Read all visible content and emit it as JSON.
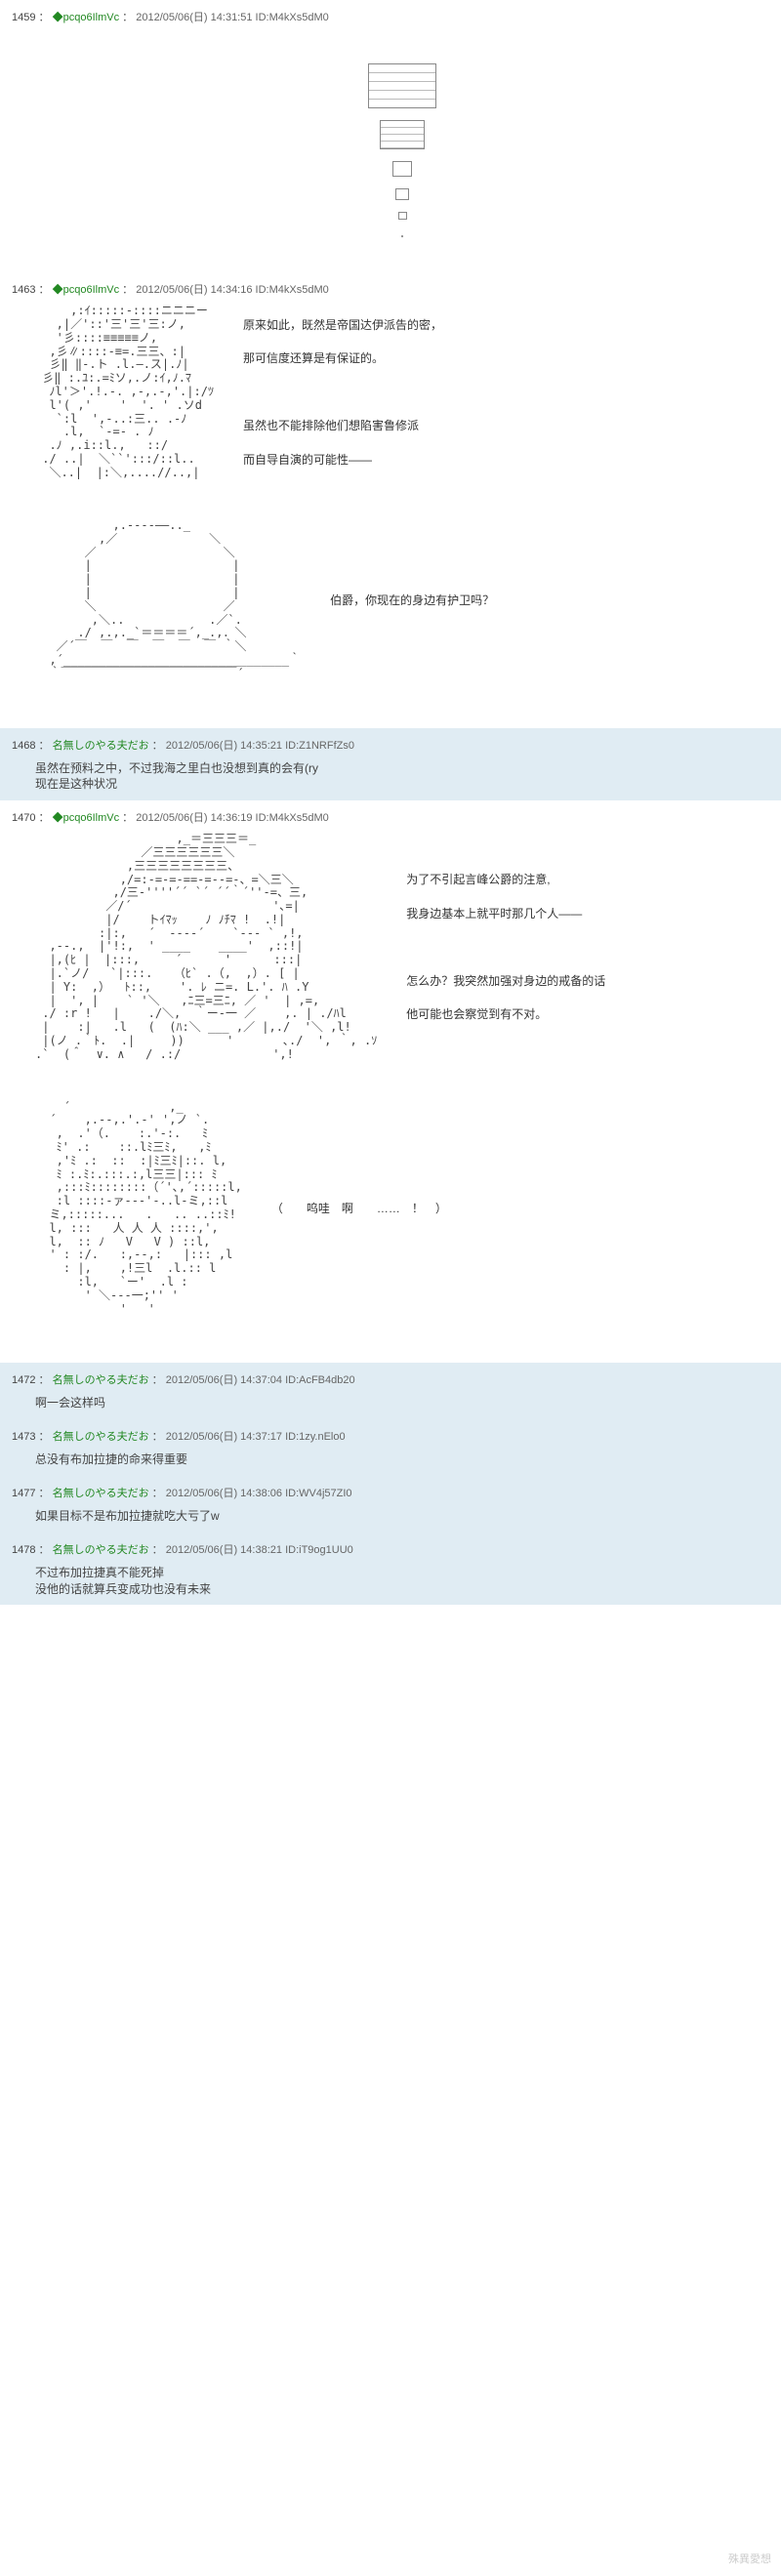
{
  "watermark": "殊異愛想",
  "posts": [
    {
      "num": "1459",
      "name": "◆pcqo6IlmVc",
      "date": "2012/05/06(日) 14:31:51",
      "id": "ID:M4kXs5dM0",
      "highlight": false,
      "type": "shapes"
    },
    {
      "num": "1463",
      "name": "◆pcqo6IlmVc",
      "date": "2012/05/06(日) 14:34:16",
      "id": "ID:M4kXs5dM0",
      "highlight": false,
      "type": "aa",
      "sections": [
        {
          "art": "face1",
          "lines": [
            "原来如此，既然是帝国达伊派告的密，",
            "那可信度还算是有保证的。",
            "",
            "虽然也不能排除他们想陷害鲁修派",
            "而自导自演的可能性——"
          ]
        },
        {
          "art": "orb",
          "lines": [
            "伯爵，你现在的身边有护卫吗？"
          ]
        }
      ]
    },
    {
      "num": "1468",
      "name": "名無しのやる夫だお",
      "date": "2012/05/06(日) 14:35:21",
      "id": "ID:Z1NRFfZs0",
      "highlight": true,
      "type": "text",
      "body": [
        "虽然在预料之中，不过我海之里白也没想到真的会有(ry",
        "现在是这种状况"
      ]
    },
    {
      "num": "1470",
      "name": "◆pcqo6IlmVc",
      "date": "2012/05/06(日) 14:36:19",
      "id": "ID:M4kXs5dM0",
      "highlight": false,
      "type": "aa",
      "sections": [
        {
          "art": "face2",
          "lines": [
            "为了不引起言峰公爵的注意,",
            "我身边基本上就平时那几个人——",
            "",
            "怎么办？我突然加强对身边的戒备的话",
            "他可能也会察觉到有不对。"
          ]
        },
        {
          "art": "hand",
          "lines": [
            "（　　呜哇　啊　　……　！　）"
          ]
        }
      ]
    },
    {
      "num": "1472",
      "name": "名無しのやる夫だお",
      "date": "2012/05/06(日) 14:37:04",
      "id": "ID:AcFB4db20",
      "highlight": true,
      "type": "text",
      "body": [
        "啊一会这样吗"
      ]
    },
    {
      "num": "1473",
      "name": "名無しのやる夫だお",
      "date": "2012/05/06(日) 14:37:17",
      "id": "ID:1zy.nElo0",
      "highlight": true,
      "type": "text",
      "body": [
        "总没有布加拉捷的命来得重要"
      ]
    },
    {
      "num": "1477",
      "name": "名無しのやる夫だお",
      "date": "2012/05/06(日) 14:38:06",
      "id": "ID:WV4j57ZI0",
      "highlight": true,
      "type": "text",
      "body": [
        "如果目标不是布加拉捷就吃大亏了w"
      ]
    },
    {
      "num": "1478",
      "name": "名無しのやる夫だお",
      "date": "2012/05/06(日) 14:38:21",
      "id": "ID:iT9og1UU0",
      "highlight": true,
      "type": "text",
      "body": [
        "不过布加拉捷真不能死掉",
        "没他的话就算兵变成功也没有未来"
      ]
    }
  ],
  "ascii": {
    "face1": "     ,:ｲ:::::-::::ニニニー\n   ,|／'::'三'三'三:ノ,\n   '彡::::≡≡≡≡≡ノ,\n  ,彡∥::::‐≡=.三三、:|\n  彡‖ ‖-.ト .l.―.ス|.ﾉ|\n 彡‖ :.ﾕ:.=ﾐソ,.ノ:ｲ,ﾉ.ﾏ\n  ﾉl'＞'.!.-. ,-,.-,'.|:/ﾂ\n  l'( ,'    '  '. ' .ソd\n   `:l  ',-..:三.. .-ﾉ\n    .l,  `-=- . ﾉ\n  .ﾉ ,.i::l.,   ::/\n ./ ..|  ＼``':::/::l..\n  ＼..|  |:＼,....//..,|",
    "orb": "           ,.----――.._\n         ,／             ＼\n       ／                  ＼\n       |                    |\n       |                    |\n       |                    |\n       ＼                  ／\n        ,＼..            .／`.\n      ./ ,.,._`＝＝＝＝´,_.,．＼\n   ／´￣  ￣  ￣  ￣  ￣  ￣ ｀＼\n  ,´________________________________｀\n  ｀￣￣￣￣￣￣￣￣￣￣￣￣￣￣￣´",
    "face2": "                    ,_＝三三三＝_\n               ／三三三三三三＼\n             ,三三三三三三三三、\n            ,/=:-=-=-==-=--=-、=＼三＼\n           ,/三-''''´´ `´ ´´｀´''-=、三,\n          ／/´                    '､=|\n          |/    トｲﾏｯ    ﾉ ﾉﾁﾏ !  .!|\n         :|:,   ´  ----´    `--- ` ,!,\n  ,--.,  |'!:,  ' ____    ____'  ,::!|\n  |,(ﾋ |  |:::,     ´      '      :::|\n  |.`ノ/   `|:::.   （ﾋ` .（,  ,）. [ |\n  | Y:  ,）  ﾄ::,    '. ﾚ ニ=. L.'. ﾊ .Y\n  |  ', |    ` '＼   ,ﾆ三=三ﾆ, ／ '  | ,=,\n ./ :r !   |    ./＼,  ｀ー-一 ／    ,. | ./ﾊl\n |    :|   .l   (  (ﾊ:＼ ___ ,／ |,./  '＼ ,l!\n |(ノ .｀ﾄ.  .|     ))      '       ､./  ', ｀, .ｿ\n.`  (＾  ∨. ∧   / .:/             ',!",
    "hand": "    ´              ,_\n  ´    ,.--,.'.-' ',ノ `.\n   ,  .'（.    :.'-:.   ﾐ\n   ﾐ' .:    ::.lﾐ三ﾐ,   ,ﾐ\n   ,'ﾐ .:  ::  :|ﾐ三ﾐ|::. l,\n   ﾐ :.ﾐ:.:::.:,l三三|::: ﾐ\n   ,:::ﾐ::::::::（´'､,´:::::l,\n   :l ::::-ァ---'-..l-ミ,::l\n  ミ,:::::...   .   .. ..::ﾐ!\n  l, :::   人 人 人 ::::,',\n  l,  :: ﾉ   V   V ) ::l,\n  ' : :/.   :,--,:   |::: ,l\n    : |,    ,!三l  .l.:: l\n      :l,   `ー'  .l :\n       ' ＼---一;'' '\n            '   '"
  }
}
